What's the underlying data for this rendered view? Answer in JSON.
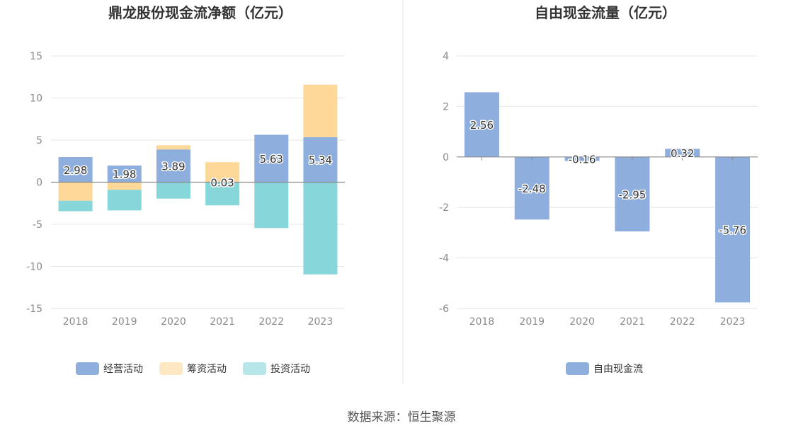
{
  "chart_data": [
    {
      "type": "bar",
      "stacked": true,
      "title": "鼎龙股份现金流净额（亿元）",
      "categories": [
        "2018",
        "2019",
        "2020",
        "2021",
        "2022",
        "2023"
      ],
      "ylim": [
        -15,
        15
      ],
      "yticks": [
        15,
        10,
        5,
        0,
        -5,
        -10,
        -15
      ],
      "grid": true,
      "legend_position": "bottom",
      "series": [
        {
          "name": "经营活动",
          "color": "#8eaedd",
          "values": [
            2.98,
            1.98,
            3.89,
            0.03,
            5.63,
            5.34
          ],
          "labels": [
            "2.98",
            "1.98",
            "3.89",
            "0.03",
            "5.63",
            "5.34"
          ]
        },
        {
          "name": "筹资活动",
          "color": "#fdd899",
          "values": [
            -2.2,
            -0.9,
            0.5,
            2.35,
            0.0,
            6.25
          ]
        },
        {
          "name": "投资活动",
          "color": "#87d6d9",
          "values": [
            -1.25,
            -2.45,
            -1.95,
            -2.75,
            -5.45,
            -10.95
          ]
        }
      ]
    },
    {
      "type": "bar",
      "title": "自由现金流量（亿元）",
      "categories": [
        "2018",
        "2019",
        "2020",
        "2021",
        "2022",
        "2023"
      ],
      "ylim": [
        -6,
        4
      ],
      "yticks": [
        4,
        2,
        0,
        -2,
        -4,
        -6
      ],
      "grid": true,
      "legend_position": "bottom",
      "series": [
        {
          "name": "自由现金流",
          "color": "#8eaedd",
          "values": [
            2.56,
            -2.48,
            -0.16,
            -2.95,
            0.32,
            -5.76
          ],
          "labels": [
            "2.56",
            "-2.48",
            "-0.16",
            "-2.95",
            "0.32",
            "-5.76"
          ]
        }
      ]
    }
  ],
  "footer": {
    "source": "数据来源：恒生聚源"
  }
}
